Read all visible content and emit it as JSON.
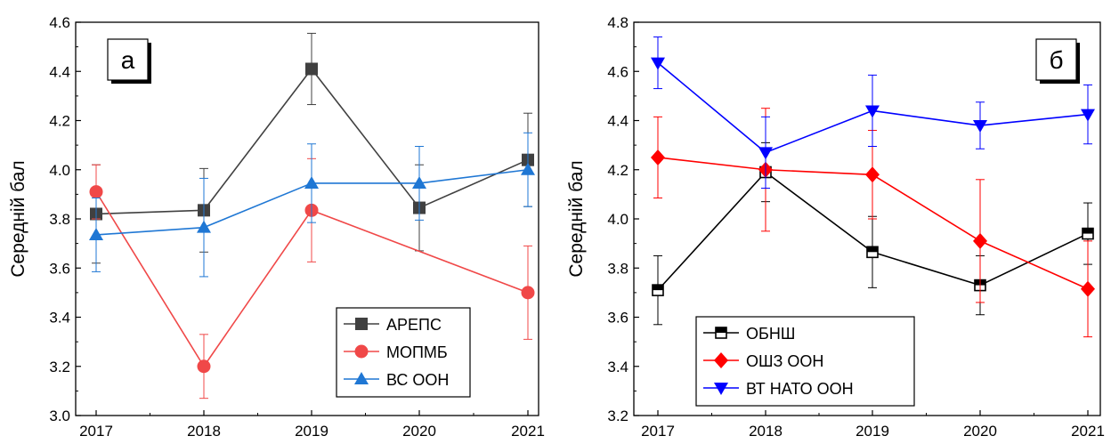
{
  "chart_data": [
    {
      "type": "line",
      "panel_label": "а",
      "ylabel": "Середній бал",
      "categories": [
        "2017",
        "2018",
        "2019",
        "2020",
        "2021"
      ],
      "ylim": [
        3.0,
        4.6
      ],
      "yticks": [
        "3.0",
        "3.2",
        "3.4",
        "3.6",
        "3.8",
        "4.0",
        "4.2",
        "4.4",
        "4.6"
      ],
      "legend_position": "bottom-right",
      "series": [
        {
          "name": "АРЕПС",
          "color": "#404040",
          "marker": "square",
          "values": [
            3.82,
            3.835,
            4.41,
            3.845,
            4.04
          ],
          "errors": [
            0.2,
            0.17,
            0.145,
            0.175,
            0.19
          ]
        },
        {
          "name": "МОПМБ",
          "color": "#f04848",
          "marker": "circle",
          "values": [
            3.91,
            3.2,
            3.835,
            null,
            3.5
          ],
          "errors": [
            0.11,
            0.13,
            0.21,
            null,
            0.19
          ]
        },
        {
          "name": "ВС ООН",
          "color": "#1f77d4",
          "marker": "triangle-up",
          "values": [
            3.735,
            3.765,
            3.945,
            3.945,
            4.0
          ],
          "errors": [
            0.15,
            0.2,
            0.16,
            0.15,
            0.15
          ]
        }
      ]
    },
    {
      "type": "line",
      "panel_label": "б",
      "ylabel": "Середній бал",
      "categories": [
        "2017",
        "2018",
        "2019",
        "2020",
        "2021"
      ],
      "ylim": [
        3.2,
        4.8
      ],
      "yticks": [
        "3.2",
        "3.4",
        "3.6",
        "3.8",
        "4.0",
        "4.2",
        "4.4",
        "4.6",
        "4.8"
      ],
      "legend_position": "bottom-left",
      "series": [
        {
          "name": "ОБНШ",
          "color": "#000000",
          "marker": "half-square",
          "values": [
            3.71,
            4.19,
            3.865,
            3.73,
            3.94
          ],
          "errors": [
            0.14,
            0.12,
            0.145,
            0.12,
            0.125
          ]
        },
        {
          "name": "ОШЗ ООН",
          "color": "#ff0000",
          "marker": "diamond",
          "values": [
            4.25,
            4.2,
            4.18,
            3.91,
            3.715
          ],
          "errors": [
            0.165,
            0.25,
            0.18,
            0.25,
            0.195
          ]
        },
        {
          "name": "ВТ НАТО ООН",
          "color": "#0000ff",
          "marker": "triangle-down",
          "values": [
            4.635,
            4.27,
            4.44,
            4.38,
            4.425
          ],
          "errors": [
            0.105,
            0.145,
            0.145,
            0.095,
            0.12
          ]
        }
      ]
    }
  ]
}
